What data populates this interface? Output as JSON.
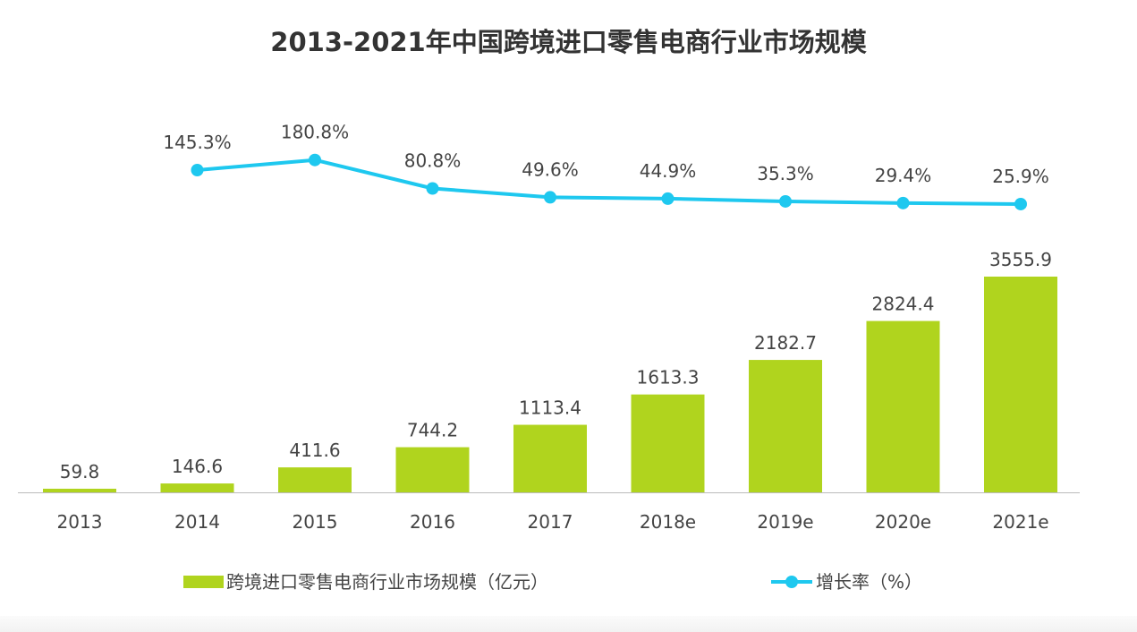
{
  "chart_data": {
    "type": "bar+line",
    "title": "2013-2021年中国跨境进口零售电商行业市场规模",
    "categories": [
      "2013",
      "2014",
      "2015",
      "2016",
      "2017",
      "2018e",
      "2019e",
      "2020e",
      "2021e"
    ],
    "series": [
      {
        "name": "跨境进口零售电商行业市场规模（亿元）",
        "type": "bar",
        "color": "#b0d41e",
        "values": [
          59.8,
          146.6,
          411.6,
          744.2,
          1113.4,
          1613.3,
          2182.7,
          2824.4,
          3555.9
        ],
        "labels": [
          "59.8",
          "146.6",
          "411.6",
          "744.2",
          "1113.4",
          "1613.3",
          "2182.7",
          "2824.4",
          "3555.9"
        ]
      },
      {
        "name": "增长率（%）",
        "type": "line",
        "color": "#1ec8ef",
        "values": [
          null,
          145.3,
          180.8,
          80.8,
          49.6,
          44.9,
          35.3,
          29.4,
          25.9
        ],
        "labels": [
          "",
          "145.3%",
          "180.8%",
          "80.8%",
          "49.6%",
          "44.9%",
          "35.3%",
          "29.4%",
          "25.9%"
        ]
      }
    ],
    "legend": {
      "bar_label": "跨境进口零售电商行业市场规模（亿元）",
      "line_label": "增长率（%）",
      "placement": "bottom"
    },
    "grid": false
  }
}
